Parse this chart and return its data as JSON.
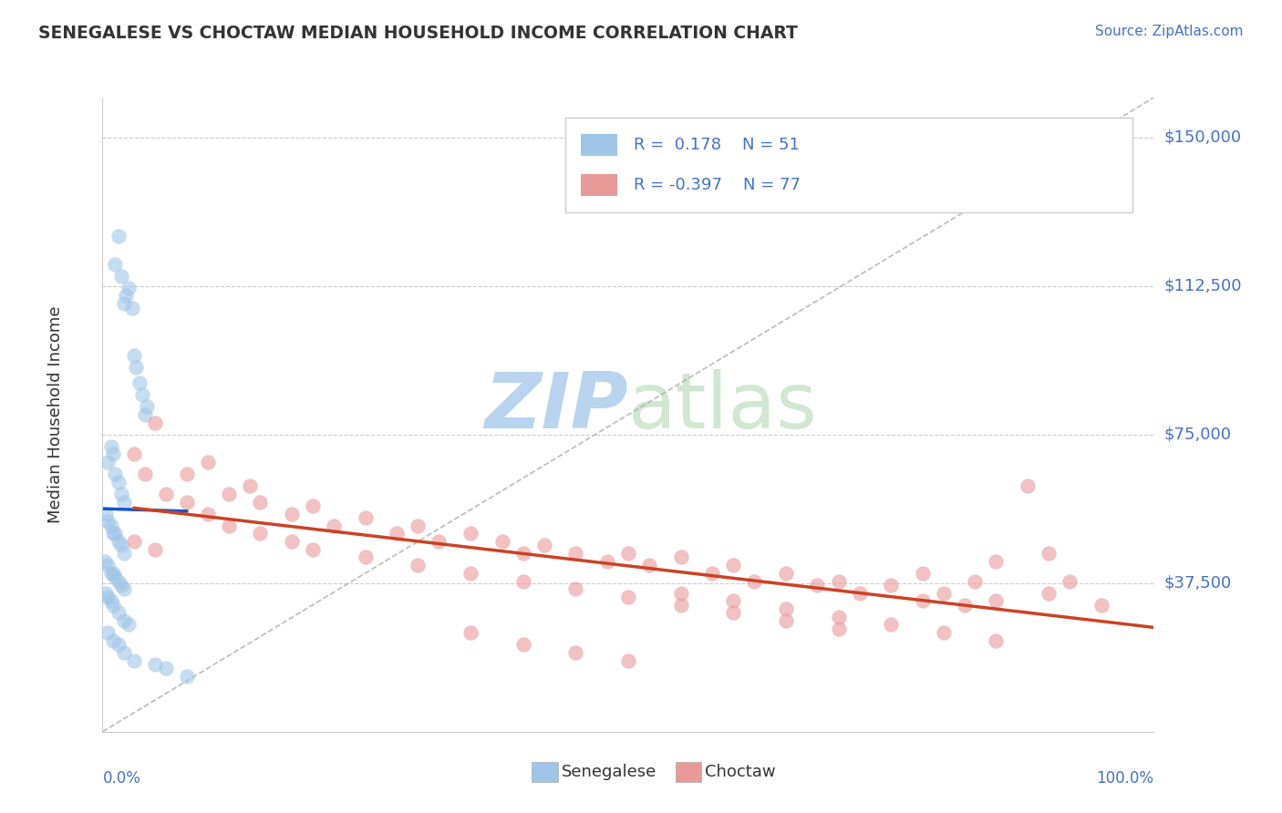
{
  "title": "SENEGALESE VS CHOCTAW MEDIAN HOUSEHOLD INCOME CORRELATION CHART",
  "source": "Source: ZipAtlas.com",
  "ylabel": "Median Household Income",
  "yticks": [
    0,
    37500,
    75000,
    112500,
    150000
  ],
  "ytick_labels": [
    "",
    "$37,500",
    "$75,000",
    "$112,500",
    "$150,000"
  ],
  "ymin": 0,
  "ymax": 160000,
  "xmin": 0,
  "xmax": 100,
  "blue_color": "#9fc5e8",
  "pink_color": "#ea9999",
  "blue_line_color": "#1155cc",
  "pink_line_color": "#cc4125",
  "title_color": "#333333",
  "source_color": "#4472c4",
  "axis_label_color": "#4472c4",
  "watermark_color": "#d0e8f8",
  "blue_dots_x": [
    1.2,
    1.5,
    1.8,
    2.0,
    2.2,
    2.5,
    2.8,
    3.0,
    3.2,
    3.5,
    3.8,
    4.0,
    4.2,
    0.5,
    0.8,
    1.0,
    1.2,
    1.5,
    1.8,
    2.0,
    0.3,
    0.5,
    0.8,
    1.0,
    1.2,
    1.5,
    1.8,
    2.0,
    0.2,
    0.5,
    0.8,
    1.0,
    1.2,
    1.5,
    1.8,
    2.0,
    0.3,
    0.5,
    0.8,
    1.0,
    1.5,
    2.0,
    2.5,
    0.5,
    1.0,
    1.5,
    2.0,
    3.0,
    5.0,
    6.0,
    8.0
  ],
  "blue_dots_y": [
    118000,
    125000,
    115000,
    108000,
    110000,
    112000,
    107000,
    95000,
    92000,
    88000,
    85000,
    80000,
    82000,
    68000,
    72000,
    70000,
    65000,
    63000,
    60000,
    58000,
    55000,
    53000,
    52000,
    50000,
    50000,
    48000,
    47000,
    45000,
    43000,
    42000,
    40000,
    40000,
    39000,
    38000,
    37000,
    36000,
    35000,
    34000,
    33000,
    32000,
    30000,
    28000,
    27000,
    25000,
    23000,
    22000,
    20000,
    18000,
    17000,
    16000,
    14000
  ],
  "pink_dots_x": [
    5.0,
    8.0,
    10.0,
    12.0,
    14.0,
    15.0,
    18.0,
    20.0,
    22.0,
    25.0,
    28.0,
    30.0,
    32.0,
    35.0,
    38.0,
    40.0,
    42.0,
    45.0,
    48.0,
    50.0,
    52.0,
    55.0,
    58.0,
    60.0,
    62.0,
    65.0,
    68.0,
    70.0,
    72.0,
    75.0,
    78.0,
    80.0,
    82.0,
    85.0,
    3.0,
    4.0,
    6.0,
    8.0,
    10.0,
    12.0,
    15.0,
    18.0,
    20.0,
    25.0,
    30.0,
    35.0,
    40.0,
    45.0,
    50.0,
    55.0,
    60.0,
    65.0,
    70.0,
    35.0,
    40.0,
    45.0,
    50.0,
    55.0,
    60.0,
    65.0,
    70.0,
    75.0,
    80.0,
    85.0,
    88.0,
    90.0,
    92.0,
    85.0,
    78.0,
    83.0,
    90.0,
    95.0,
    3.0,
    5.0
  ],
  "pink_dots_y": [
    78000,
    65000,
    68000,
    60000,
    62000,
    58000,
    55000,
    57000,
    52000,
    54000,
    50000,
    52000,
    48000,
    50000,
    48000,
    45000,
    47000,
    45000,
    43000,
    45000,
    42000,
    44000,
    40000,
    42000,
    38000,
    40000,
    37000,
    38000,
    35000,
    37000,
    33000,
    35000,
    32000,
    33000,
    70000,
    65000,
    60000,
    58000,
    55000,
    52000,
    50000,
    48000,
    46000,
    44000,
    42000,
    40000,
    38000,
    36000,
    34000,
    32000,
    30000,
    28000,
    26000,
    25000,
    22000,
    20000,
    18000,
    35000,
    33000,
    31000,
    29000,
    27000,
    25000,
    23000,
    62000,
    45000,
    38000,
    43000,
    40000,
    38000,
    35000,
    32000,
    48000,
    46000
  ]
}
